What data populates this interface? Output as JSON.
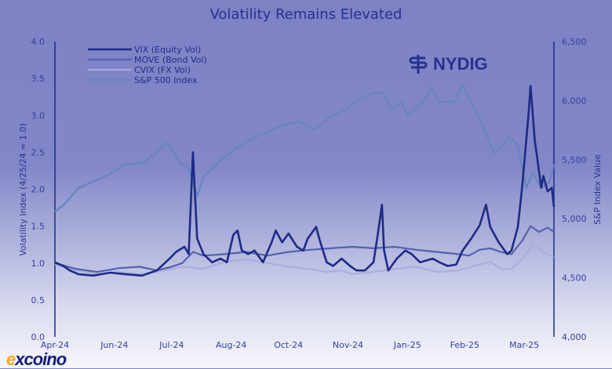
{
  "chart_data": {
    "type": "line",
    "title": "Volatility Remains Elevated",
    "xlabel": "",
    "ylabel": "Volatility Index (4/25/24 = 1.0)",
    "y2label": "S&P Index Value",
    "x_unit": "trading days since 4/25/24",
    "xlim": [
      0,
      235
    ],
    "ylim": [
      0,
      4.0
    ],
    "y2lim": [
      4000,
      6500
    ],
    "yticks": [
      "0.0",
      "0.5",
      "1.0",
      "1.5",
      "2.0",
      "2.5",
      "3.0",
      "3.5",
      "4.0"
    ],
    "ytick_values": [
      0,
      0.5,
      1.0,
      1.5,
      2.0,
      2.5,
      3.0,
      3.5,
      4.0
    ],
    "y2ticks": [
      "4,000",
      "4,500",
      "5,000",
      "5,500",
      "6,000",
      "6,500"
    ],
    "y2tick_values": [
      4000,
      4500,
      5000,
      5500,
      6000,
      6500
    ],
    "xticks": [
      "Apr-24",
      "Jun-24",
      "Jul-24",
      "Aug-24",
      "Oct-24",
      "Nov-24",
      "Jan-25",
      "Feb-25",
      "Mar-25"
    ],
    "xtick_values": [
      0,
      28,
      55,
      83,
      110,
      138,
      166,
      193,
      221
    ],
    "grid": false,
    "legend_position": "top-left",
    "series": [
      {
        "name": "VIX (Equity Vol)",
        "axis": "left",
        "color": "#1e2a85",
        "width": 2.6,
        "x": [
          0,
          4,
          7,
          11,
          18,
          26,
          33,
          41,
          48,
          54,
          57,
          61,
          63,
          65,
          66,
          67,
          70,
          74,
          78,
          81,
          84,
          86,
          88,
          91,
          94,
          98,
          102,
          104,
          107,
          110,
          114,
          117,
          119,
          123,
          125,
          128,
          131,
          135,
          139,
          142,
          146,
          150,
          152,
          154,
          155,
          157,
          161,
          165,
          168,
          172,
          178,
          181,
          185,
          189,
          192,
          196,
          200,
          203,
          205,
          209,
          213,
          215,
          218,
          220,
          223,
          224,
          226,
          227,
          229,
          230,
          232,
          234,
          235
        ],
        "y": [
          1.01,
          0.96,
          0.9,
          0.85,
          0.83,
          0.87,
          0.85,
          0.83,
          0.9,
          1.06,
          1.15,
          1.22,
          1.12,
          2.5,
          1.91,
          1.33,
          1.12,
          1.01,
          1.06,
          1.01,
          1.38,
          1.44,
          1.17,
          1.12,
          1.17,
          1.01,
          1.28,
          1.44,
          1.28,
          1.4,
          1.22,
          1.17,
          1.33,
          1.49,
          1.28,
          1.01,
          0.96,
          1.06,
          0.96,
          0.9,
          0.9,
          1.01,
          1.38,
          1.79,
          1.17,
          0.9,
          1.06,
          1.17,
          1.12,
          1.01,
          1.06,
          1.01,
          0.96,
          0.98,
          1.17,
          1.33,
          1.51,
          1.79,
          1.49,
          1.28,
          1.12,
          1.17,
          1.49,
          2.02,
          3.0,
          3.4,
          2.66,
          2.45,
          2.02,
          2.18,
          1.97,
          2.02,
          1.76
        ]
      },
      {
        "name": "MOVE (Bond Vol)",
        "axis": "left",
        "color": "#5560ad",
        "width": 2.2,
        "x": [
          0,
          10,
          20,
          30,
          40,
          48,
          55,
          60,
          65,
          70,
          80,
          90,
          100,
          110,
          120,
          130,
          140,
          150,
          160,
          170,
          180,
          190,
          195,
          200,
          205,
          210,
          215,
          220,
          224,
          228,
          232,
          235
        ],
        "y": [
          1.0,
          0.92,
          0.88,
          0.93,
          0.95,
          0.9,
          0.95,
          1.0,
          1.15,
          1.1,
          1.12,
          1.15,
          1.1,
          1.15,
          1.18,
          1.2,
          1.22,
          1.2,
          1.22,
          1.18,
          1.15,
          1.12,
          1.1,
          1.18,
          1.2,
          1.15,
          1.12,
          1.3,
          1.5,
          1.42,
          1.48,
          1.42
        ]
      },
      {
        "name": "CVIX (FX Vol)",
        "axis": "left",
        "color": "#a3aadd",
        "width": 2.2,
        "x": [
          0,
          10,
          20,
          30,
          40,
          48,
          55,
          60,
          70,
          80,
          90,
          100,
          110,
          120,
          128,
          135,
          140,
          150,
          160,
          170,
          180,
          190,
          200,
          205,
          210,
          215,
          220,
          225,
          230,
          235
        ],
        "y": [
          0.98,
          0.9,
          0.85,
          0.88,
          0.85,
          0.88,
          0.92,
          0.95,
          0.92,
          1.02,
          1.05,
          1.0,
          0.95,
          0.92,
          0.88,
          0.9,
          0.85,
          0.88,
          0.92,
          0.95,
          0.88,
          0.9,
          0.98,
          1.02,
          0.92,
          0.92,
          1.05,
          1.25,
          1.15,
          1.08
        ]
      },
      {
        "name": "S&P 500 Index",
        "axis": "right",
        "color": "#6a84c2",
        "width": 2.4,
        "x": [
          0,
          4,
          11,
          18,
          26,
          33,
          41,
          48,
          52,
          55,
          59,
          63,
          67,
          70,
          78,
          85,
          92,
          100,
          107,
          115,
          122,
          126,
          129,
          137,
          144,
          151,
          155,
          159,
          163,
          166,
          174,
          177,
          181,
          188,
          192,
          196,
          200,
          203,
          207,
          211,
          214,
          218,
          222,
          225,
          229,
          233,
          235
        ],
        "y": [
          5061,
          5114,
          5260,
          5313,
          5379,
          5459,
          5472,
          5558,
          5644,
          5591,
          5472,
          5425,
          5193,
          5359,
          5492,
          5591,
          5671,
          5737,
          5790,
          5823,
          5757,
          5803,
          5856,
          5923,
          6022,
          6069,
          6055,
          5923,
          5989,
          5870,
          6002,
          6108,
          5989,
          5989,
          6135,
          5989,
          5856,
          5724,
          5558,
          5624,
          5691,
          5624,
          5260,
          5392,
          5260,
          5313,
          5459
        ]
      }
    ]
  },
  "branding": {
    "nydig": "NYDIG",
    "excoino_e": "e",
    "excoino_rest": "xcoino"
  }
}
